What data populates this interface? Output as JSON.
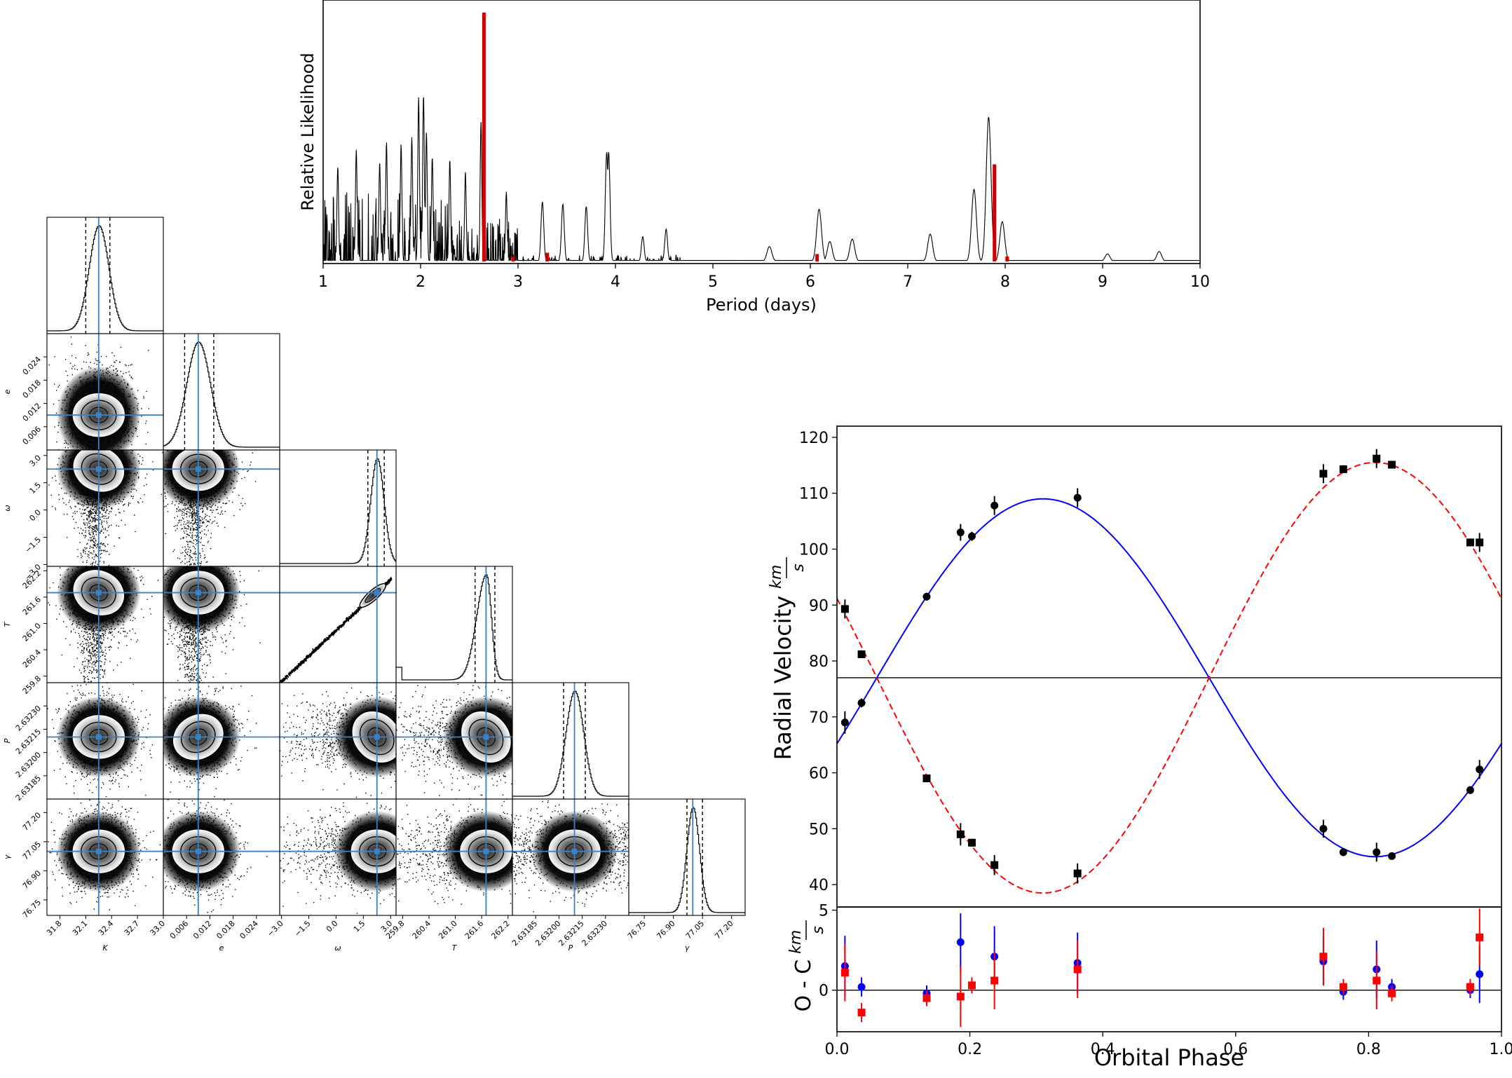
{
  "chart_data": [
    {
      "type": "line",
      "panel": "periodogram",
      "xlabel": "Period (days)",
      "ylabel": "Relative Likelihood",
      "xlim": [
        1,
        10
      ],
      "xticks": [
        "1",
        "2",
        "3",
        "4",
        "5",
        "6",
        "7",
        "8",
        "9",
        "10"
      ],
      "yticks": "none",
      "series": [
        {
          "role": "likelihood curve",
          "color": "#000000",
          "peaks": [
            {
              "x": 1.15,
              "y": 0.38
            },
            {
              "x": 1.34,
              "y": 0.45
            },
            {
              "x": 1.58,
              "y": 0.4
            },
            {
              "x": 1.65,
              "y": 0.48
            },
            {
              "x": 1.8,
              "y": 0.47
            },
            {
              "x": 1.91,
              "y": 0.5
            },
            {
              "x": 1.98,
              "y": 0.66
            },
            {
              "x": 2.03,
              "y": 0.67
            },
            {
              "x": 2.06,
              "y": 0.52
            },
            {
              "x": 2.12,
              "y": 0.42
            },
            {
              "x": 2.3,
              "y": 0.41
            },
            {
              "x": 2.46,
              "y": 0.36
            },
            {
              "x": 2.62,
              "y": 0.56
            },
            {
              "x": 2.88,
              "y": 0.28
            },
            {
              "x": 3.25,
              "y": 0.24
            },
            {
              "x": 3.46,
              "y": 0.23
            },
            {
              "x": 3.7,
              "y": 0.22
            },
            {
              "x": 3.91,
              "y": 0.44
            },
            {
              "x": 3.93,
              "y": 0.44
            },
            {
              "x": 4.28,
              "y": 0.1
            },
            {
              "x": 4.52,
              "y": 0.13
            },
            {
              "x": 5.58,
              "y": 0.06
            },
            {
              "x": 6.09,
              "y": 0.21
            },
            {
              "x": 6.2,
              "y": 0.08
            },
            {
              "x": 6.43,
              "y": 0.09
            },
            {
              "x": 7.23,
              "y": 0.11
            },
            {
              "x": 7.68,
              "y": 0.29
            },
            {
              "x": 7.83,
              "y": 0.58
            },
            {
              "x": 7.97,
              "y": 0.16
            },
            {
              "x": 9.05,
              "y": 0.03
            },
            {
              "x": 9.58,
              "y": 0.04
            }
          ]
        },
        {
          "role": "histogram",
          "color": "#cc0000",
          "bars": [
            {
              "x": 2.65,
              "y": 1.0
            },
            {
              "x": 2.95,
              "y": 0.02
            },
            {
              "x": 3.3,
              "y": 0.035
            },
            {
              "x": 6.07,
              "y": 0.03
            },
            {
              "x": 7.89,
              "y": 0.39
            },
            {
              "x": 8.02,
              "y": 0.02
            }
          ]
        }
      ]
    },
    {
      "type": "corner",
      "panel": "posterior corner plot",
      "parameters": [
        {
          "symbol": "K",
          "ticks": [
            "31.8",
            "32.1",
            "32.4",
            "32.7",
            "33.0"
          ],
          "range": [
            31.65,
            33.0
          ],
          "median": 32.25,
          "ci": [
            32.1,
            32.38
          ]
        },
        {
          "symbol": "e",
          "ticks": [
            "0.006",
            "0.012",
            "0.018",
            "0.024"
          ],
          "range": [
            0.0,
            0.03
          ],
          "median": 0.009,
          "ci": [
            0.0055,
            0.013
          ]
        },
        {
          "symbol": "ω",
          "ticks": [
            "−3.0",
            "−1.5",
            "0.0",
            "1.5",
            "3.0"
          ],
          "range": [
            -3.1,
            3.3
          ],
          "median": 2.25,
          "ci": [
            1.75,
            2.65
          ]
        },
        {
          "symbol": "T",
          "ticks": [
            "259.8",
            "260.4",
            "261.0",
            "261.6",
            "262.2"
          ],
          "range": [
            259.65,
            262.3
          ],
          "median": 261.7,
          "ci": [
            261.45,
            261.9
          ]
        },
        {
          "symbol": "P",
          "ticks": [
            "2.63185",
            "2.63200",
            "2.63215",
            "2.63230"
          ],
          "range": [
            2.6317,
            2.63245
          ],
          "median": 2.6321,
          "ci": [
            2.63203,
            2.63217
          ]
        },
        {
          "symbol": "γ",
          "ticks": [
            "76.75",
            "76.90",
            "77.05",
            "77.20"
          ],
          "range": [
            76.67,
            77.27
          ],
          "median": 77.0,
          "ci": [
            76.97,
            77.05
          ]
        }
      ],
      "y_tick_labels": {
        "e": [
          "0.024",
          "0.018",
          "0.012",
          "0.006"
        ],
        "ω": [
          "3.0",
          "1.5",
          "0.0",
          "−1.5",
          "−3.0"
        ],
        "T": [
          "262.2",
          "261.6",
          "261.0",
          "260.4",
          "259.8"
        ],
        "P": [
          "2.63230",
          "2.63215",
          "2.63200",
          "2.63185"
        ],
        "γ": [
          "77.20",
          "77.05",
          "76.90",
          "76.75"
        ]
      },
      "truth_line_color": "#3a82c4"
    },
    {
      "type": "scatter",
      "panel": "radial velocity",
      "xlabel": "Orbital Phase",
      "ylabel": "Radial Velocity",
      "ylabel_unit": {
        "num": "km",
        "den": "s"
      },
      "xlim": [
        0.0,
        1.0
      ],
      "ylim": [
        36,
        122
      ],
      "xticks": [
        "0.0",
        "0.2",
        "0.4",
        "0.6",
        "0.8",
        "1.0"
      ],
      "yticks": [
        "40",
        "50",
        "60",
        "70",
        "80",
        "90",
        "100",
        "110",
        "120"
      ],
      "systemic_velocity": 77.0,
      "model_curves": [
        {
          "name": "primary",
          "color": "#0000ff",
          "style": "solid",
          "gamma": 77.0,
          "amplitude": 32.0,
          "phase_of_max": 0.31
        },
        {
          "name": "secondary",
          "color": "#ff0000",
          "style": "dashed",
          "gamma": 77.0,
          "amplitude": 38.5,
          "phase_of_max": 0.81
        }
      ],
      "series": [
        {
          "name": "primary (circles)",
          "marker": "circle",
          "color": "#000000",
          "points": [
            {
              "x": 0.012,
              "y": 69.0,
              "err": 2.0
            },
            {
              "x": 0.037,
              "y": 72.5,
              "err": 0.8
            },
            {
              "x": 0.135,
              "y": 91.5,
              "err": 0.7
            },
            {
              "x": 0.186,
              "y": 103.0,
              "err": 1.5
            },
            {
              "x": 0.203,
              "y": 102.3,
              "err": 0.8
            },
            {
              "x": 0.237,
              "y": 107.8,
              "err": 1.7
            },
            {
              "x": 0.362,
              "y": 109.2,
              "err": 1.7
            },
            {
              "x": 0.732,
              "y": 50.0,
              "err": 1.6
            },
            {
              "x": 0.762,
              "y": 45.8,
              "err": 0.7
            },
            {
              "x": 0.812,
              "y": 45.8,
              "err": 1.7
            },
            {
              "x": 0.835,
              "y": 45.1,
              "err": 0.6
            },
            {
              "x": 0.953,
              "y": 56.9,
              "err": 0.7
            },
            {
              "x": 0.967,
              "y": 60.6,
              "err": 1.7
            }
          ]
        },
        {
          "name": "secondary (squares)",
          "marker": "square",
          "color": "#000000",
          "points": [
            {
              "x": 0.012,
              "y": 89.3,
              "err": 1.7
            },
            {
              "x": 0.037,
              "y": 81.2,
              "err": 0.7
            },
            {
              "x": 0.135,
              "y": 59.0,
              "err": 0.7
            },
            {
              "x": 0.186,
              "y": 49.0,
              "err": 2.0
            },
            {
              "x": 0.203,
              "y": 47.5,
              "err": 0.7
            },
            {
              "x": 0.237,
              "y": 43.5,
              "err": 1.8
            },
            {
              "x": 0.362,
              "y": 42.0,
              "err": 1.8
            },
            {
              "x": 0.732,
              "y": 113.5,
              "err": 1.7
            },
            {
              "x": 0.762,
              "y": 114.3,
              "err": 0.7
            },
            {
              "x": 0.812,
              "y": 116.2,
              "err": 1.7
            },
            {
              "x": 0.835,
              "y": 115.1,
              "err": 0.6
            },
            {
              "x": 0.953,
              "y": 101.2,
              "err": 0.7
            },
            {
              "x": 0.967,
              "y": 101.2,
              "err": 1.7
            }
          ]
        }
      ]
    },
    {
      "type": "scatter",
      "panel": "residuals",
      "xlabel": "Orbital Phase",
      "ylabel": "O - C",
      "ylabel_unit": {
        "num": "km",
        "den": "s"
      },
      "xlim": [
        0.0,
        1.0
      ],
      "ylim": [
        -2.6,
        5.2
      ],
      "yticks": [
        "0",
        "5"
      ],
      "xticks": [
        "0.0",
        "0.2",
        "0.4",
        "0.6",
        "0.8",
        "1.0"
      ],
      "series": [
        {
          "name": "primary residuals",
          "marker": "circle",
          "color": "#0000ff",
          "points": [
            {
              "x": 0.012,
              "y": 1.5,
              "err": 1.9
            },
            {
              "x": 0.037,
              "y": 0.2,
              "err": 0.6
            },
            {
              "x": 0.135,
              "y": -0.2,
              "err": 0.5
            },
            {
              "x": 0.186,
              "y": 3.0,
              "err": 1.8
            },
            {
              "x": 0.237,
              "y": 2.1,
              "err": 1.9
            },
            {
              "x": 0.362,
              "y": 1.7,
              "err": 1.9
            },
            {
              "x": 0.732,
              "y": 1.8,
              "err": 1.5
            },
            {
              "x": 0.762,
              "y": -0.1,
              "err": 0.5
            },
            {
              "x": 0.812,
              "y": 1.3,
              "err": 1.8
            },
            {
              "x": 0.835,
              "y": 0.2,
              "err": 0.5
            },
            {
              "x": 0.953,
              "y": 0.0,
              "err": 0.5
            },
            {
              "x": 0.967,
              "y": 1.0,
              "err": 1.8
            }
          ]
        },
        {
          "name": "secondary residuals",
          "marker": "square",
          "color": "#ff0000",
          "points": [
            {
              "x": 0.012,
              "y": 1.1,
              "err": 1.8
            },
            {
              "x": 0.037,
              "y": -1.4,
              "err": 0.6
            },
            {
              "x": 0.135,
              "y": -0.5,
              "err": 0.5
            },
            {
              "x": 0.186,
              "y": -0.4,
              "err": 1.9
            },
            {
              "x": 0.203,
              "y": 0.3,
              "err": 0.5
            },
            {
              "x": 0.237,
              "y": 0.6,
              "err": 1.8
            },
            {
              "x": 0.362,
              "y": 1.3,
              "err": 1.8
            },
            {
              "x": 0.732,
              "y": 2.1,
              "err": 1.8
            },
            {
              "x": 0.762,
              "y": 0.2,
              "err": 0.5
            },
            {
              "x": 0.812,
              "y": 0.6,
              "err": 1.8
            },
            {
              "x": 0.835,
              "y": -0.2,
              "err": 0.5
            },
            {
              "x": 0.953,
              "y": 0.2,
              "err": 0.5
            },
            {
              "x": 0.967,
              "y": 3.3,
              "err": 1.8
            }
          ]
        }
      ]
    }
  ]
}
